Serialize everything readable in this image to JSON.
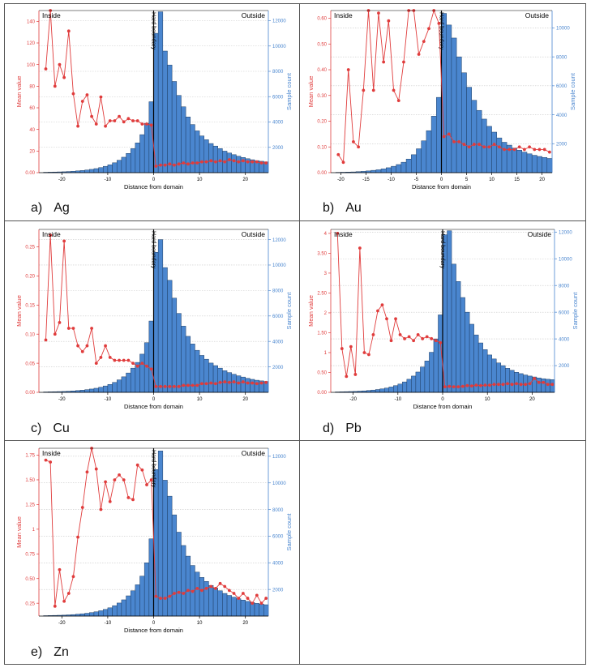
{
  "chart_data": [
    {
      "id": "ag",
      "type": "bar+line",
      "caption_letter": "a)",
      "caption_name": "Ag",
      "xlabel": "Distance from domain",
      "ylabel_left": "Mean value",
      "ylabel_right": "Sample count",
      "label_inside": "Inside",
      "label_outside": "Outside",
      "boundary_label": "Hard boundary",
      "xlim": [
        -25,
        25
      ],
      "xticks": [
        -20,
        -10,
        0,
        10,
        20
      ],
      "ylim_left": [
        0,
        150
      ],
      "yticks_left": [
        0,
        20,
        40,
        60,
        80,
        100,
        120,
        140
      ],
      "ylim_right": [
        0,
        12800
      ],
      "yticks_right": [
        2000,
        4000,
        6000,
        8000,
        10000,
        12000
      ],
      "bars_x": [
        -24,
        -23,
        -22,
        -21,
        -20,
        -19,
        -18,
        -17,
        -16,
        -15,
        -14,
        -13,
        -12,
        -11,
        -10,
        -9,
        -8,
        -7,
        -6,
        -5,
        -4,
        -3,
        -2,
        -1,
        0,
        1,
        2,
        3,
        4,
        5,
        6,
        7,
        8,
        9,
        10,
        11,
        12,
        13,
        14,
        15,
        16,
        17,
        18,
        19,
        20,
        21,
        22,
        23,
        24
      ],
      "bars": [
        30,
        40,
        50,
        60,
        70,
        90,
        110,
        140,
        170,
        210,
        260,
        320,
        400,
        500,
        620,
        780,
        980,
        1220,
        1520,
        1900,
        2350,
        3000,
        3900,
        5600,
        11000,
        12700,
        9600,
        8500,
        7200,
        6100,
        5200,
        4400,
        3800,
        3300,
        2900,
        2600,
        2300,
        2100,
        1900,
        1700,
        1550,
        1420,
        1300,
        1200,
        1100,
        1020,
        950,
        900,
        850
      ],
      "line_x": [
        -24,
        -23,
        -22,
        -21,
        -20,
        -19,
        -18,
        -17,
        -16,
        -15,
        -14,
        -13,
        -12,
        -11,
        -10,
        -9,
        -8,
        -7,
        -6,
        -5,
        -4,
        -3,
        -2,
        -1,
        0,
        1,
        2,
        3,
        4,
        5,
        6,
        7,
        8,
        9,
        10,
        11,
        12,
        13,
        14,
        15,
        16,
        17,
        18,
        19,
        20,
        21,
        22,
        23,
        24
      ],
      "line": [
        96,
        150,
        80,
        100,
        88,
        131,
        73,
        43,
        66,
        72,
        52,
        45,
        70,
        43,
        48,
        48,
        52,
        47,
        50,
        48,
        48,
        45,
        45,
        44,
        6,
        7,
        7,
        8,
        7,
        8,
        9,
        8,
        9,
        9,
        10,
        10,
        11,
        10,
        11,
        10,
        12,
        11,
        10,
        11,
        10,
        10,
        10,
        9,
        9
      ],
      "colors": {
        "bar": "#4a86cf",
        "line": "#e03c3c"
      }
    },
    {
      "id": "au",
      "type": "bar+line",
      "caption_letter": "b)",
      "caption_name": "Au",
      "xlabel": "Distance from domain",
      "ylabel_left": "Mean value",
      "ylabel_right": "Sample count",
      "label_inside": "Inside",
      "label_outside": "Outside",
      "boundary_label": "Hard boundary",
      "xlim": [
        -22,
        22
      ],
      "xticks": [
        -20,
        -15,
        -10,
        -5,
        0,
        5,
        10,
        15,
        20
      ],
      "ylim_left": [
        0,
        0.63
      ],
      "yticks_left": [
        0,
        0.1,
        0.2,
        0.3,
        0.4,
        0.5,
        0.6
      ],
      "ylim_right": [
        0,
        11200
      ],
      "yticks_right": [
        2000,
        4000,
        6000,
        8000,
        10000
      ],
      "bars_x": [
        -21,
        -20,
        -19,
        -18,
        -17,
        -16,
        -15,
        -14,
        -13,
        -12,
        -11,
        -10,
        -9,
        -8,
        -7,
        -6,
        -5,
        -4,
        -3,
        -2,
        -1,
        0,
        1,
        2,
        3,
        4,
        5,
        6,
        7,
        8,
        9,
        10,
        11,
        12,
        13,
        14,
        15,
        16,
        17,
        18,
        19,
        20,
        21
      ],
      "bars": [
        20,
        30,
        40,
        50,
        70,
        90,
        120,
        160,
        200,
        260,
        340,
        440,
        560,
        720,
        940,
        1240,
        1650,
        2200,
        2900,
        3900,
        5200,
        11000,
        10200,
        9300,
        8000,
        6900,
        5900,
        5000,
        4300,
        3700,
        3200,
        2800,
        2400,
        2100,
        1900,
        1700,
        1550,
        1420,
        1300,
        1200,
        1120,
        1050,
        980
      ],
      "line_x": [
        -21,
        -20,
        -19,
        -18,
        -17,
        -16,
        -15,
        -14,
        -13,
        -12,
        -11,
        -10,
        -9,
        -8,
        -7,
        -6,
        -5,
        -4,
        -3,
        -2,
        -1,
        0,
        1,
        2,
        3,
        4,
        5,
        6,
        7,
        8,
        9,
        10,
        11,
        12,
        13,
        14,
        15,
        16,
        17,
        18,
        19,
        20,
        21
      ],
      "line": [
        0.07,
        0.04,
        0.4,
        0.12,
        0.1,
        0.32,
        0.65,
        0.32,
        0.62,
        0.43,
        0.59,
        0.32,
        0.28,
        0.43,
        0.64,
        0.64,
        0.46,
        0.51,
        0.56,
        0.74,
        0.58,
        0.14,
        0.15,
        0.12,
        0.12,
        0.11,
        0.1,
        0.11,
        0.11,
        0.1,
        0.1,
        0.11,
        0.1,
        0.09,
        0.09,
        0.09,
        0.1,
        0.09,
        0.1,
        0.09,
        0.09,
        0.09,
        0.08
      ],
      "colors": {
        "bar": "#4a86cf",
        "line": "#e03c3c"
      }
    },
    {
      "id": "cu",
      "type": "bar+line",
      "caption_letter": "c)",
      "caption_name": "Cu",
      "xlabel": "Distance from domain",
      "ylabel_left": "Mean value",
      "ylabel_right": "Sample count",
      "label_inside": "Inside",
      "label_outside": "Outside",
      "boundary_label": "Hard boundary",
      "xlim": [
        -25,
        25
      ],
      "xticks": [
        -20,
        -10,
        0,
        10,
        20
      ],
      "ylim_left": [
        0,
        0.28
      ],
      "yticks_left": [
        0,
        0.05,
        0.1,
        0.15,
        0.2,
        0.25
      ],
      "ylim_right": [
        0,
        12800
      ],
      "yticks_right": [
        2000,
        4000,
        6000,
        8000,
        10000,
        12000
      ],
      "bars_x": [
        -24,
        -23,
        -22,
        -21,
        -20,
        -19,
        -18,
        -17,
        -16,
        -15,
        -14,
        -13,
        -12,
        -11,
        -10,
        -9,
        -8,
        -7,
        -6,
        -5,
        -4,
        -3,
        -2,
        -1,
        0,
        1,
        2,
        3,
        4,
        5,
        6,
        7,
        8,
        9,
        10,
        11,
        12,
        13,
        14,
        15,
        16,
        17,
        18,
        19,
        20,
        21,
        22,
        23,
        24
      ],
      "bars": [
        30,
        40,
        50,
        60,
        70,
        90,
        110,
        140,
        170,
        210,
        260,
        320,
        400,
        500,
        620,
        780,
        980,
        1220,
        1520,
        1900,
        2350,
        3000,
        3900,
        5600,
        11000,
        12000,
        9800,
        8800,
        7400,
        6200,
        5200,
        4400,
        3800,
        3300,
        2900,
        2600,
        2300,
        2100,
        1900,
        1700,
        1550,
        1420,
        1300,
        1200,
        1100,
        1020,
        950,
        900,
        850
      ],
      "line_x": [
        -24,
        -23,
        -22,
        -21,
        -20,
        -19,
        -18,
        -17,
        -16,
        -15,
        -14,
        -13,
        -12,
        -11,
        -10,
        -9,
        -8,
        -7,
        -6,
        -5,
        -4,
        -3,
        -2,
        -1,
        0,
        1,
        2,
        3,
        4,
        5,
        6,
        7,
        8,
        9,
        10,
        11,
        12,
        13,
        14,
        15,
        16,
        17,
        18,
        19,
        20,
        21,
        22,
        23,
        24
      ],
      "line": [
        0.09,
        0.27,
        0.1,
        0.12,
        0.26,
        0.11,
        0.11,
        0.08,
        0.07,
        0.08,
        0.11,
        0.05,
        0.06,
        0.08,
        0.06,
        0.055,
        0.055,
        0.055,
        0.055,
        0.05,
        0.045,
        0.05,
        0.045,
        0.04,
        0.01,
        0.01,
        0.01,
        0.01,
        0.01,
        0.01,
        0.012,
        0.012,
        0.012,
        0.012,
        0.015,
        0.015,
        0.016,
        0.015,
        0.017,
        0.018,
        0.017,
        0.018,
        0.016,
        0.018,
        0.016,
        0.016,
        0.015,
        0.016,
        0.017
      ],
      "colors": {
        "bar": "#4a86cf",
        "line": "#e03c3c"
      }
    },
    {
      "id": "pb",
      "type": "bar+line",
      "caption_letter": "d)",
      "caption_name": "Pb",
      "xlabel": "Distance from domain",
      "ylabel_left": "Mean value",
      "ylabel_right": "Sample count",
      "label_inside": "Inside",
      "label_outside": "Outside",
      "boundary_label": "Hard boundary",
      "xlim": [
        -25,
        25
      ],
      "xticks": [
        -20,
        -10,
        0,
        10,
        20
      ],
      "ylim_left": [
        0,
        4.1
      ],
      "yticks_left": [
        0,
        0.5,
        1.0,
        1.5,
        2.0,
        2.5,
        3.0,
        3.5,
        4.0
      ],
      "ylim_right": [
        0,
        12200
      ],
      "yticks_right": [
        2000,
        4000,
        6000,
        8000,
        10000,
        12000
      ],
      "bars_x": [
        -24,
        -23,
        -22,
        -21,
        -20,
        -19,
        -18,
        -17,
        -16,
        -15,
        -14,
        -13,
        -12,
        -11,
        -10,
        -9,
        -8,
        -7,
        -6,
        -5,
        -4,
        -3,
        -2,
        -1,
        0,
        1,
        2,
        3,
        4,
        5,
        6,
        7,
        8,
        9,
        10,
        11,
        12,
        13,
        14,
        15,
        16,
        17,
        18,
        19,
        20,
        21,
        22,
        23,
        24
      ],
      "bars": [
        30,
        40,
        50,
        60,
        70,
        90,
        110,
        140,
        170,
        210,
        260,
        320,
        400,
        500,
        620,
        780,
        980,
        1220,
        1520,
        1900,
        2350,
        3000,
        4000,
        5800,
        11800,
        12100,
        9600,
        8300,
        7100,
        6000,
        5100,
        4300,
        3700,
        3200,
        2800,
        2500,
        2200,
        2000,
        1800,
        1650,
        1500,
        1400,
        1300,
        1220,
        1150,
        1080,
        1020,
        980,
        950
      ],
      "line_x": [
        -24,
        -23,
        -22,
        -21,
        -20,
        -19,
        -18,
        -17,
        -16,
        -15,
        -14,
        -13,
        -12,
        -11,
        -10,
        -9,
        -8,
        -7,
        -6,
        -5,
        -4,
        -3,
        -2,
        -1,
        0,
        1,
        2,
        3,
        4,
        5,
        6,
        7,
        8,
        9,
        10,
        11,
        12,
        13,
        14,
        15,
        16,
        17,
        18,
        19,
        20,
        21,
        22,
        23,
        24
      ],
      "line": [
        4.0,
        1.1,
        0.4,
        1.15,
        0.45,
        3.63,
        1.0,
        0.95,
        1.45,
        2.05,
        2.2,
        1.85,
        1.3,
        1.85,
        1.45,
        1.35,
        1.4,
        1.3,
        1.45,
        1.35,
        1.4,
        1.35,
        1.3,
        1.25,
        0.14,
        0.15,
        0.14,
        0.14,
        0.15,
        0.17,
        0.16,
        0.18,
        0.17,
        0.18,
        0.18,
        0.2,
        0.2,
        0.2,
        0.22,
        0.2,
        0.22,
        0.2,
        0.2,
        0.22,
        0.35,
        0.25,
        0.25,
        0.2,
        0.2
      ],
      "colors": {
        "bar": "#4a86cf",
        "line": "#e03c3c"
      }
    },
    {
      "id": "zn",
      "type": "bar+line",
      "caption_letter": "e)",
      "caption_name": "Zn",
      "xlabel": "Distance from domain",
      "ylabel_left": "Mean value",
      "ylabel_right": "Sample count",
      "label_inside": "Inside",
      "label_outside": "Outside",
      "boundary_label": "Hard boundary",
      "xlim": [
        -25,
        25
      ],
      "xticks": [
        -20,
        -10,
        0,
        10,
        20
      ],
      "ylim_left": [
        0.12,
        1.82
      ],
      "yticks_left": [
        0.25,
        0.5,
        0.75,
        1.0,
        1.25,
        1.5,
        1.75
      ],
      "ylim_right": [
        0,
        12600
      ],
      "yticks_right": [
        2000,
        4000,
        6000,
        8000,
        10000,
        12000
      ],
      "bars_x": [
        -24,
        -23,
        -22,
        -21,
        -20,
        -19,
        -18,
        -17,
        -16,
        -15,
        -14,
        -13,
        -12,
        -11,
        -10,
        -9,
        -8,
        -7,
        -6,
        -5,
        -4,
        -3,
        -2,
        -1,
        0,
        1,
        2,
        3,
        4,
        5,
        6,
        7,
        8,
        9,
        10,
        11,
        12,
        13,
        14,
        15,
        16,
        17,
        18,
        19,
        20,
        21,
        22,
        23,
        24
      ],
      "bars": [
        30,
        40,
        50,
        60,
        70,
        90,
        110,
        140,
        170,
        210,
        260,
        320,
        400,
        500,
        620,
        780,
        980,
        1220,
        1520,
        1900,
        2350,
        3000,
        4000,
        5800,
        11000,
        12400,
        10200,
        9000,
        7600,
        6300,
        5300,
        4500,
        3800,
        3300,
        2900,
        2600,
        2300,
        2100,
        1900,
        1700,
        1550,
        1420,
        1300,
        1200,
        1100,
        1020,
        950,
        900,
        850
      ],
      "line_x": [
        -24,
        -23,
        -22,
        -21,
        -20,
        -19,
        -18,
        -17,
        -16,
        -15,
        -14,
        -13,
        -12,
        -11,
        -10,
        -9,
        -8,
        -7,
        -6,
        -5,
        -4,
        -3,
        -2,
        -1,
        0,
        1,
        2,
        3,
        4,
        5,
        6,
        7,
        8,
        9,
        10,
        11,
        12,
        13,
        14,
        15,
        16,
        17,
        18,
        19,
        20,
        21,
        22,
        23,
        24
      ],
      "line": [
        1.7,
        1.68,
        0.22,
        0.59,
        0.27,
        0.35,
        0.52,
        0.92,
        1.22,
        1.58,
        1.93,
        1.61,
        1.2,
        1.48,
        1.28,
        1.5,
        1.55,
        1.5,
        1.32,
        1.3,
        1.65,
        1.6,
        1.45,
        1.5,
        0.32,
        0.3,
        0.3,
        0.32,
        0.35,
        0.36,
        0.35,
        0.38,
        0.37,
        0.4,
        0.38,
        0.4,
        0.42,
        0.4,
        0.45,
        0.42,
        0.38,
        0.35,
        0.3,
        0.35,
        0.3,
        0.25,
        0.33,
        0.25,
        0.3
      ],
      "colors": {
        "bar": "#4a86cf",
        "line": "#e03c3c"
      }
    }
  ]
}
